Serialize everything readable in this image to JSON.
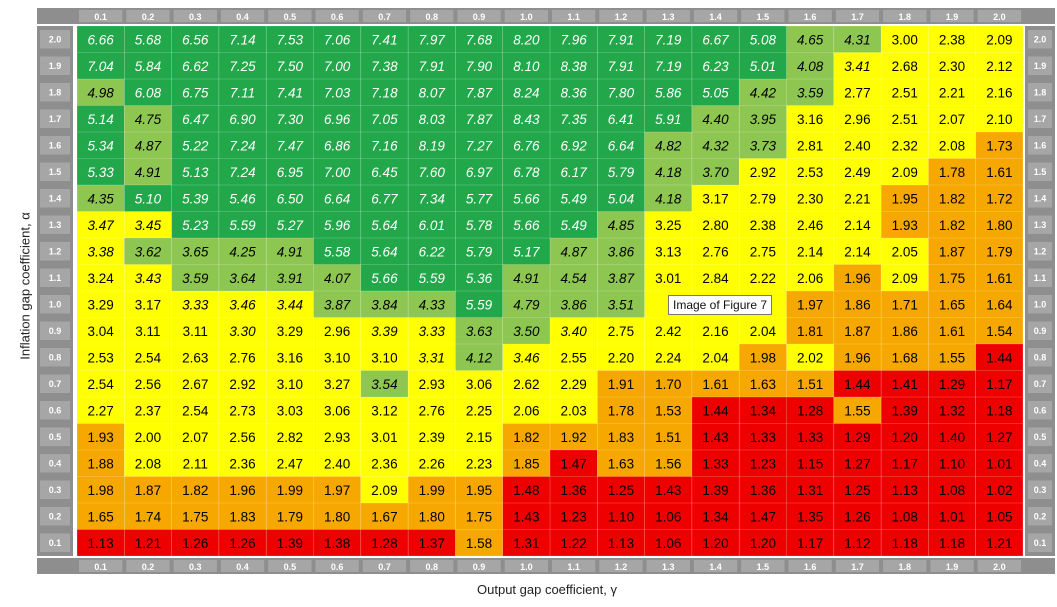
{
  "chart_data": {
    "type": "heatmap",
    "xlabel": "Output gap coefficient, γ",
    "ylabel": "Inflation gap coefficient, α",
    "x_ticks": [
      "0.1",
      "0.2",
      "0.3",
      "0.4",
      "0.5",
      "0.6",
      "0.7",
      "0.8",
      "0.9",
      "1.0",
      "1.1",
      "1.2",
      "1.3",
      "1.4",
      "1.5",
      "1.6",
      "1.7",
      "1.8",
      "1.9",
      "2.0"
    ],
    "y_ticks": [
      "2.0",
      "1.9",
      "1.8",
      "1.7",
      "1.6",
      "1.5",
      "1.4",
      "1.3",
      "1.2",
      "1.1",
      "1.0",
      "0.9",
      "0.8",
      "0.7",
      "0.6",
      "0.5",
      "0.4",
      "0.3",
      "0.2",
      "0.1"
    ],
    "rows": [
      [
        "6.66",
        "5.68",
        "6.56",
        "7.14",
        "7.53",
        "7.06",
        "7.41",
        "7.97",
        "7.68",
        "8.20",
        "7.96",
        "7.91",
        "7.19",
        "6.67",
        "5.08",
        "4.65",
        "4.31",
        "3.00",
        "2.38",
        "2.09"
      ],
      [
        "7.04",
        "5.84",
        "6.62",
        "7.25",
        "7.50",
        "7.00",
        "7.38",
        "7.91",
        "7.90",
        "8.10",
        "8.38",
        "7.91",
        "7.19",
        "6.23",
        "5.01",
        "4.08",
        "3.41",
        "2.68",
        "2.30",
        "2.12"
      ],
      [
        "4.98",
        "6.08",
        "6.75",
        "7.11",
        "7.41",
        "7.03",
        "7.18",
        "8.07",
        "7.87",
        "8.24",
        "8.36",
        "7.80",
        "5.86",
        "5.05",
        "4.42",
        "3.59",
        "2.77",
        "2.51",
        "2.21",
        "2.16"
      ],
      [
        "5.14",
        "4.75",
        "6.47",
        "6.90",
        "7.30",
        "6.96",
        "7.05",
        "8.03",
        "7.87",
        "8.43",
        "7.35",
        "6.41",
        "5.91",
        "4.40",
        "3.95",
        "3.16",
        "2.96",
        "2.51",
        "2.07",
        "2.10"
      ],
      [
        "5.34",
        "4.87",
        "5.22",
        "7.24",
        "7.47",
        "6.86",
        "7.16",
        "8.19",
        "7.27",
        "6.76",
        "6.92",
        "6.64",
        "4.82",
        "4.32",
        "3.73",
        "2.81",
        "2.40",
        "2.32",
        "2.08",
        "1.73"
      ],
      [
        "5.33",
        "4.91",
        "5.13",
        "7.24",
        "6.95",
        "7.00",
        "6.45",
        "7.60",
        "6.97",
        "6.78",
        "6.17",
        "5.79",
        "4.18",
        "3.70",
        "2.92",
        "2.53",
        "2.49",
        "2.09",
        "1.78",
        "1.61"
      ],
      [
        "4.35",
        "5.10",
        "5.39",
        "5.46",
        "6.50",
        "6.64",
        "6.77",
        "7.34",
        "5.77",
        "5.66",
        "5.49",
        "5.04",
        "4.18",
        "3.17",
        "2.79",
        "2.30",
        "2.21",
        "1.95",
        "1.82",
        "1.72"
      ],
      [
        "3.47",
        "3.45",
        "5.23",
        "5.59",
        "5.27",
        "5.96",
        "5.64",
        "6.01",
        "5.78",
        "5.66",
        "5.49",
        "4.85",
        "3.25",
        "2.80",
        "2.38",
        "2.46",
        "2.14",
        "1.93",
        "1.82",
        "1.80"
      ],
      [
        "3.38",
        "3.62",
        "3.65",
        "4.25",
        "4.91",
        "5.58",
        "5.64",
        "6.22",
        "5.79",
        "5.17",
        "4.87",
        "3.86",
        "3.13",
        "2.76",
        "2.75",
        "2.14",
        "2.14",
        "2.05",
        "1.87",
        "1.79"
      ],
      [
        "3.24",
        "3.43",
        "3.59",
        "3.64",
        "3.91",
        "4.07",
        "5.66",
        "5.59",
        "5.36",
        "4.91",
        "4.54",
        "3.87",
        "3.01",
        "2.84",
        "2.22",
        "2.06",
        "1.96",
        "2.09",
        "1.75",
        "1.61"
      ],
      [
        "3.29",
        "3.17",
        "3.33",
        "3.46",
        "3.44",
        "3.87",
        "3.84",
        "4.33",
        "5.59",
        "4.79",
        "3.86",
        "3.51",
        "",
        "",
        "",
        "1.97",
        "1.86",
        "1.71",
        "1.65",
        "1.64"
      ],
      [
        "3.04",
        "3.11",
        "3.11",
        "3.30",
        "3.29",
        "2.96",
        "3.39",
        "3.33",
        "3.63",
        "3.50",
        "3.40",
        "2.75",
        "2.42",
        "2.16",
        "2.04",
        "1.81",
        "1.87",
        "1.86",
        "1.61",
        "1.54"
      ],
      [
        "2.53",
        "2.54",
        "2.63",
        "2.76",
        "3.16",
        "3.10",
        "3.10",
        "3.31",
        "4.12",
        "3.46",
        "2.55",
        "2.20",
        "2.24",
        "2.04",
        "1.98",
        "2.02",
        "1.96",
        "1.68",
        "1.55",
        "1.44"
      ],
      [
        "2.54",
        "2.56",
        "2.67",
        "2.92",
        "3.10",
        "3.27",
        "3.54",
        "2.93",
        "3.06",
        "2.62",
        "2.29",
        "1.91",
        "1.70",
        "1.61",
        "1.63",
        "1.51",
        "1.44",
        "1.41",
        "1.29",
        "1.17"
      ],
      [
        "2.27",
        "2.37",
        "2.54",
        "2.73",
        "3.03",
        "3.06",
        "3.12",
        "2.76",
        "2.25",
        "2.06",
        "2.03",
        "1.78",
        "1.53",
        "1.44",
        "1.34",
        "1.28",
        "1.55",
        "1.39",
        "1.32",
        "1.18"
      ],
      [
        "1.93",
        "2.00",
        "2.07",
        "2.56",
        "2.82",
        "2.93",
        "3.01",
        "2.39",
        "2.15",
        "1.82",
        "1.92",
        "1.83",
        "1.51",
        "1.43",
        "1.33",
        "1.33",
        "1.29",
        "1.20",
        "1.40",
        "1.27"
      ],
      [
        "1.88",
        "2.08",
        "2.11",
        "2.36",
        "2.47",
        "2.40",
        "2.36",
        "2.26",
        "2.23",
        "1.85",
        "1.47",
        "1.63",
        "1.56",
        "1.33",
        "1.23",
        "1.15",
        "1.27",
        "1.17",
        "1.10",
        "1.01"
      ],
      [
        "1.98",
        "1.87",
        "1.82",
        "1.96",
        "1.99",
        "1.97",
        "2.09",
        "1.99",
        "1.95",
        "1.48",
        "1.36",
        "1.25",
        "1.43",
        "1.39",
        "1.36",
        "1.31",
        "1.25",
        "1.13",
        "1.08",
        "1.02"
      ],
      [
        "1.65",
        "1.74",
        "1.75",
        "1.83",
        "1.79",
        "1.80",
        "1.67",
        "1.80",
        "1.75",
        "1.43",
        "1.23",
        "1.10",
        "1.06",
        "1.34",
        "1.47",
        "1.35",
        "1.26",
        "1.08",
        "1.01",
        "1.05"
      ],
      [
        "1.13",
        "1.21",
        "1.26",
        "1.26",
        "1.39",
        "1.38",
        "1.28",
        "1.37",
        "1.58",
        "1.31",
        "1.22",
        "1.13",
        "1.06",
        "1.20",
        "1.20",
        "1.17",
        "1.12",
        "1.18",
        "1.18",
        "1.21"
      ]
    ],
    "legend": "none",
    "grid": true
  },
  "colors": {
    "dark_green": "#22a84a",
    "light_green": "#8ec652",
    "yellow": "#ffff00",
    "orange": "#f7a800",
    "red": "#ee0000",
    "header_bg": "#8e8e8e",
    "header_text": "#ffffff"
  },
  "tooltip": {
    "text": "Image of Figure 7"
  }
}
